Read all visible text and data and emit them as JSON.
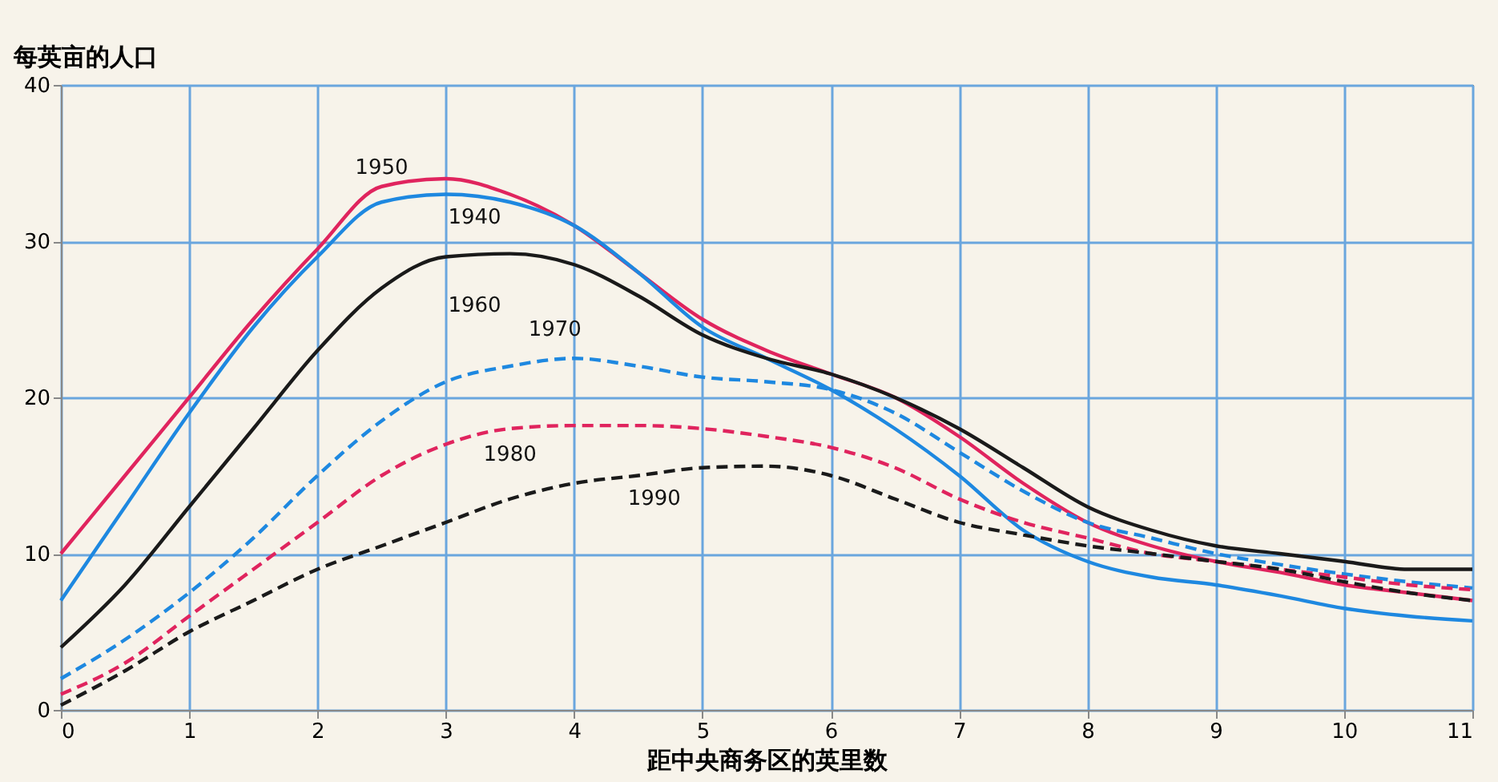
{
  "chart_data": {
    "type": "line",
    "xlabel": "距中央商务区的英里数",
    "ylabel": "每英亩的人口",
    "x": [
      0,
      0.5,
      1,
      1.5,
      2,
      2.5,
      3,
      3.5,
      4,
      4.5,
      5,
      5.5,
      6,
      6.5,
      7,
      7.5,
      8,
      8.5,
      9,
      9.5,
      10,
      10.5,
      11
    ],
    "xlim": [
      0,
      11
    ],
    "xticks": [
      0,
      1,
      2,
      3,
      4,
      5,
      6,
      7,
      8,
      9,
      10,
      11
    ],
    "ylim": [
      0,
      40
    ],
    "yticks": [
      0,
      10,
      20,
      30,
      40
    ],
    "grid": true,
    "legend": false,
    "marker": "none",
    "series": [
      {
        "name": "1950",
        "color": "#e0245e",
        "line_style": "solid",
        "values": [
          10,
          15,
          20,
          25,
          29.5,
          33.5,
          34,
          33,
          31,
          28,
          25,
          23,
          21.5,
          20,
          17.5,
          14.5,
          12,
          10.5,
          9.5,
          8.8,
          8,
          7.5,
          7
        ]
      },
      {
        "name": "1940",
        "color": "#1e88e0",
        "line_style": "solid",
        "values": [
          7,
          13,
          19,
          24.5,
          29,
          32.5,
          33,
          32.5,
          31,
          28,
          24.5,
          22.5,
          20.5,
          18,
          15,
          11.5,
          9.5,
          8.5,
          8,
          7.3,
          6.5,
          6,
          5.7
        ]
      },
      {
        "name": "1960",
        "color": "#1a1a1a",
        "line_style": "solid",
        "values": [
          4,
          8,
          13,
          18,
          23,
          27,
          29,
          29.2,
          28.5,
          26.5,
          24,
          22.5,
          21.5,
          20,
          18,
          15.5,
          13,
          11.5,
          10.5,
          10,
          9.5,
          9,
          9
        ]
      },
      {
        "name": "1970",
        "color": "#1e88e0",
        "line_style": "dashed",
        "values": [
          2,
          4.5,
          7.5,
          11,
          15,
          18.5,
          21,
          22,
          22.5,
          22,
          21.3,
          21,
          20.5,
          19,
          16.5,
          14,
          12,
          11,
          10,
          9.3,
          8.7,
          8.2,
          7.8
        ]
      },
      {
        "name": "1980",
        "color": "#e0245e",
        "line_style": "dashed",
        "values": [
          1,
          3,
          6,
          9,
          12,
          15,
          17,
          18,
          18.2,
          18.2,
          18,
          17.5,
          16.8,
          15.5,
          13.5,
          12,
          11,
          10,
          9.5,
          9,
          8.5,
          8,
          7.7
        ]
      },
      {
        "name": "1990",
        "color": "#1a1a1a",
        "line_style": "dashed",
        "values": [
          0.3,
          2.5,
          5,
          7,
          9,
          10.5,
          12,
          13.5,
          14.5,
          15,
          15.5,
          15.6,
          15,
          13.5,
          12,
          11.2,
          10.5,
          10,
          9.5,
          9,
          8.2,
          7.5,
          7
        ]
      }
    ]
  }
}
